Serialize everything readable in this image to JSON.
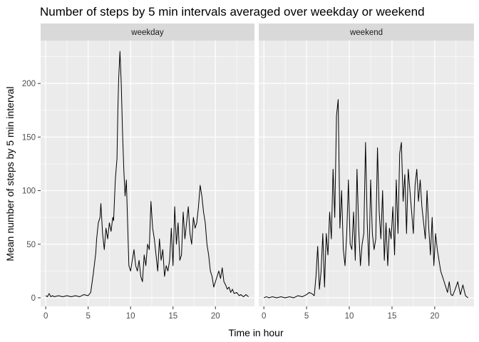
{
  "chart_data": {
    "type": "line",
    "title": "Number of steps by 5 min intervals averaged over weekday or weekend",
    "xlabel": "Time in hour",
    "ylabel": "Mean number of steps by 5 min interval",
    "xlim": [
      -0.6,
      24.6
    ],
    "ylim": [
      -8,
      240
    ],
    "x_ticks": [
      0,
      5,
      10,
      15,
      20,
      25
    ],
    "y_ticks": [
      0,
      50,
      100,
      150,
      200
    ],
    "grid": true,
    "legend": "none",
    "facets": [
      {
        "name": "weekday",
        "x": [
          0.0,
          0.2,
          0.4,
          0.6,
          0.8,
          1.0,
          1.5,
          2.0,
          2.5,
          3.0,
          3.5,
          4.0,
          4.5,
          5.0,
          5.3,
          5.6,
          5.9,
          6.0,
          6.2,
          6.4,
          6.5,
          6.7,
          6.9,
          7.1,
          7.3,
          7.5,
          7.7,
          7.9,
          8.0,
          8.2,
          8.4,
          8.5,
          8.6,
          8.75,
          8.9,
          9.05,
          9.2,
          9.35,
          9.5,
          9.65,
          9.8,
          10.0,
          10.2,
          10.4,
          10.6,
          10.8,
          11.0,
          11.2,
          11.4,
          11.6,
          11.8,
          12.0,
          12.2,
          12.4,
          12.6,
          12.8,
          13.0,
          13.2,
          13.4,
          13.6,
          13.8,
          14.0,
          14.2,
          14.4,
          14.6,
          14.8,
          15.0,
          15.2,
          15.4,
          15.6,
          15.8,
          16.0,
          16.2,
          16.4,
          16.6,
          16.8,
          17.0,
          17.2,
          17.4,
          17.6,
          17.8,
          18.0,
          18.2,
          18.4,
          18.6,
          18.8,
          19.0,
          19.2,
          19.4,
          19.6,
          19.8,
          20.0,
          20.2,
          20.4,
          20.6,
          20.8,
          21.0,
          21.2,
          21.4,
          21.6,
          21.8,
          22.0,
          22.2,
          22.5,
          22.8,
          23.0,
          23.3,
          23.6,
          23.9
        ],
        "values": [
          2,
          1,
          4,
          1,
          2,
          1,
          2,
          1,
          2,
          1,
          2,
          1,
          3,
          2,
          5,
          22,
          42,
          55,
          70,
          75,
          88,
          60,
          45,
          65,
          55,
          70,
          62,
          75,
          72,
          110,
          130,
          175,
          205,
          230,
          200,
          155,
          120,
          95,
          110,
          70,
          30,
          25,
          35,
          45,
          30,
          25,
          35,
          20,
          15,
          40,
          30,
          50,
          45,
          90,
          65,
          55,
          40,
          25,
          55,
          35,
          45,
          20,
          30,
          25,
          35,
          65,
          30,
          85,
          50,
          70,
          35,
          40,
          80,
          55,
          70,
          85,
          60,
          50,
          75,
          65,
          70,
          85,
          105,
          95,
          80,
          70,
          50,
          40,
          25,
          20,
          10,
          15,
          20,
          25,
          18,
          28,
          15,
          12,
          8,
          10,
          5,
          8,
          4,
          5,
          2,
          3,
          1,
          3,
          1
        ]
      },
      {
        "name": "weekend",
        "x": [
          0.0,
          0.3,
          0.6,
          1.0,
          1.5,
          2.0,
          2.5,
          3.0,
          3.5,
          4.0,
          4.5,
          5.0,
          5.3,
          5.6,
          5.9,
          6.1,
          6.3,
          6.5,
          6.7,
          6.9,
          7.1,
          7.3,
          7.5,
          7.7,
          7.9,
          8.1,
          8.3,
          8.5,
          8.7,
          8.9,
          9.1,
          9.3,
          9.5,
          9.7,
          9.9,
          10.1,
          10.3,
          10.5,
          10.7,
          10.9,
          11.1,
          11.3,
          11.5,
          11.7,
          11.9,
          12.1,
          12.3,
          12.5,
          12.7,
          12.9,
          13.1,
          13.3,
          13.5,
          13.7,
          13.9,
          14.1,
          14.3,
          14.5,
          14.7,
          14.9,
          15.1,
          15.3,
          15.5,
          15.7,
          15.9,
          16.1,
          16.3,
          16.5,
          16.7,
          16.9,
          17.1,
          17.3,
          17.5,
          17.7,
          17.9,
          18.1,
          18.3,
          18.5,
          18.7,
          18.9,
          19.1,
          19.3,
          19.5,
          19.7,
          19.9,
          20.1,
          20.3,
          20.5,
          20.7,
          20.9,
          21.1,
          21.3,
          21.5,
          21.7,
          21.9,
          22.1,
          22.4,
          22.7,
          23.0,
          23.3,
          23.6,
          23.9
        ],
        "values": [
          0,
          1,
          0,
          1,
          0,
          1,
          0,
          1,
          0,
          2,
          1,
          3,
          5,
          4,
          2,
          20,
          48,
          8,
          25,
          60,
          10,
          60,
          40,
          80,
          55,
          120,
          75,
          170,
          185,
          65,
          100,
          45,
          30,
          60,
          110,
          50,
          45,
          80,
          35,
          120,
          65,
          30,
          50,
          60,
          145,
          70,
          30,
          110,
          60,
          45,
          55,
          140,
          80,
          55,
          100,
          35,
          70,
          30,
          65,
          55,
          85,
          40,
          110,
          60,
          135,
          145,
          90,
          115,
          60,
          120,
          100,
          80,
          60,
          105,
          120,
          90,
          110,
          85,
          70,
          55,
          100,
          65,
          40,
          75,
          30,
          60,
          45,
          35,
          25,
          20,
          15,
          10,
          5,
          15,
          3,
          2,
          8,
          15,
          3,
          12,
          2,
          0
        ]
      }
    ]
  }
}
